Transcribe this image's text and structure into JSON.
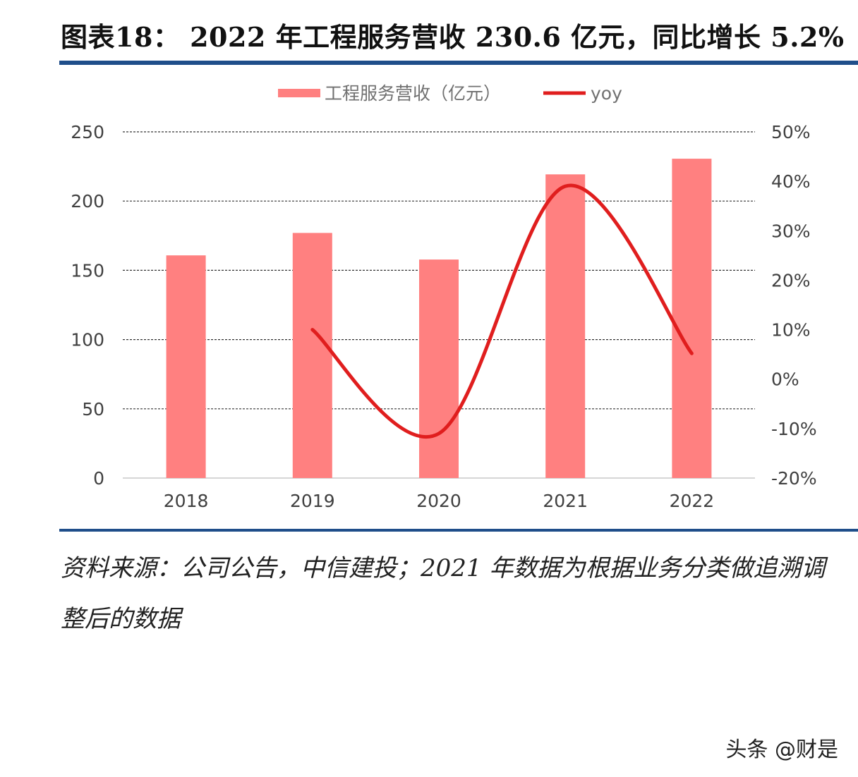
{
  "header": {
    "title": "图表18：  2022 年工程服务营收 230.6 亿元，同比增长 5.2%"
  },
  "footer": {
    "source": "资料来源：公司公告，中信建投；2021 年数据为根据业务分类做追溯调整后的数据",
    "watermark": "头条 @财是"
  },
  "colors": {
    "bar": "#ff8080",
    "line": "#e01e1e",
    "rule": "#1f4e8a"
  },
  "chart_data": {
    "type": "bar",
    "categories": [
      "2018",
      "2019",
      "2020",
      "2021",
      "2022"
    ],
    "series": [
      {
        "name": "工程服务营收（亿元）",
        "type": "bar",
        "axis": "left",
        "values": [
          160.8,
          177.0,
          157.8,
          219.3,
          230.6
        ]
      },
      {
        "name": "yoy",
        "type": "line",
        "axis": "right",
        "smooth": true,
        "values": [
          null,
          10.0,
          -11.0,
          39.0,
          5.2
        ]
      }
    ],
    "yleft": {
      "ylim": [
        0,
        250
      ],
      "ticks": [
        "0",
        "50",
        "100",
        "150",
        "200",
        "250"
      ]
    },
    "yright": {
      "ylim": [
        -20,
        50
      ],
      "ticks": [
        "-20%",
        "-10%",
        "0%",
        "10%",
        "20%",
        "30%",
        "40%",
        "50%"
      ]
    },
    "grid": true,
    "legend": "top-center"
  }
}
